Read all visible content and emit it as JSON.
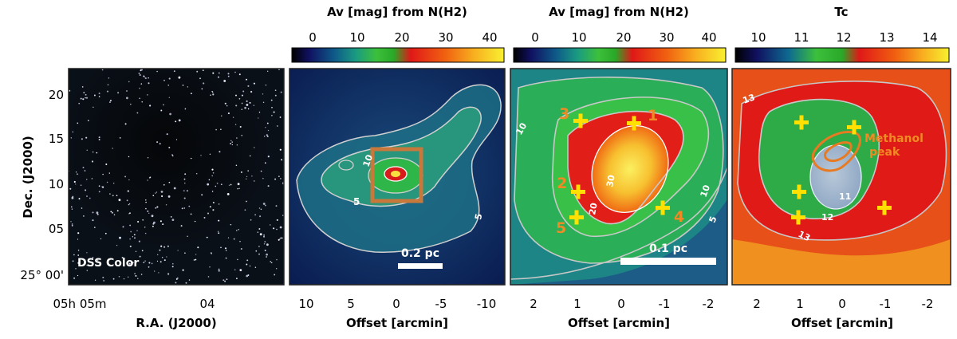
{
  "figure": {
    "ylabel": "Dec. (J2000)",
    "yticks": [
      "20",
      "15",
      "10",
      "05",
      "25° 00'"
    ],
    "xticks_dss": [
      "05h 05m",
      "04"
    ],
    "xlabel_dss": "R.A. (J2000)",
    "offset_label": "Offset [arcmin]"
  },
  "panels": [
    {
      "id": "dss",
      "inset_label": "DSS Color"
    },
    {
      "id": "av_large",
      "colorbar_title": "Av [mag] from N(H2)",
      "colorbar_ticks": [
        "0",
        "10",
        "20",
        "30",
        "40"
      ],
      "xticks": [
        "10",
        "5",
        "0",
        "-5",
        "-10"
      ],
      "contour_labels": [
        "10",
        "5",
        "5"
      ],
      "scalebar_label": "0.2 pc"
    },
    {
      "id": "av_zoom",
      "colorbar_title": "Av [mag] from N(H2)",
      "colorbar_ticks": [
        "0",
        "10",
        "20",
        "30",
        "40"
      ],
      "xticks": [
        "2",
        "1",
        "0",
        "-1",
        "-2"
      ],
      "contour_labels": [
        "10",
        "10",
        "20",
        "30",
        "5"
      ],
      "scalebar_label": "0.1 pc",
      "markers": [
        "1",
        "2",
        "3",
        "4",
        "5"
      ]
    },
    {
      "id": "tc",
      "colorbar_title": "Tc",
      "colorbar_ticks": [
        "10",
        "11",
        "12",
        "13",
        "14"
      ],
      "xticks": [
        "2",
        "1",
        "0",
        "-1",
        "-2"
      ],
      "contour_labels": [
        "13",
        "13",
        "12",
        "11"
      ],
      "annotation": "Methanol peak"
    }
  ],
  "colors": {
    "marker_yellow": "#ffe000",
    "label_orange": "#f08a24",
    "contour_gray": "#c8c8c8",
    "box_orange": "#c8783a"
  }
}
